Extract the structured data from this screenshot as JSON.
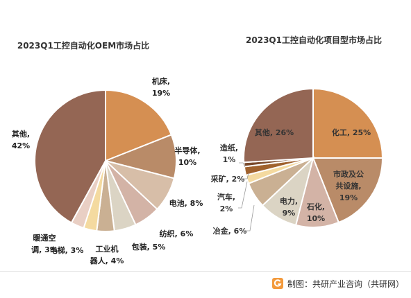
{
  "footer": {
    "source_text": "制图：共研产业咨询（共研网）",
    "logo_icon": "gongyan-logo-icon"
  },
  "chart_data": [
    {
      "type": "pie",
      "title": "2023Q1工控自动化OEM市场占比",
      "slices": [
        {
          "label": "机床",
          "value": 19,
          "display": "19%",
          "color": "#D58F52"
        },
        {
          "label": "半导体",
          "value": 10,
          "display": "10%",
          "color": "#B98B68"
        },
        {
          "label": "电池",
          "value": 8,
          "display": "8%",
          "color": "#D7BEA8"
        },
        {
          "label": "纺织",
          "value": 6,
          "display": "6%",
          "color": "#D3B3A6"
        },
        {
          "label": "包装",
          "value": 5,
          "display": "5%",
          "color": "#DBD4C4"
        },
        {
          "label": "工业机器人",
          "value": 4,
          "display": "4%",
          "color": "#CAB093"
        },
        {
          "label": "电梯",
          "value": 3,
          "display": "3%",
          "color": "#F4DAA0"
        },
        {
          "label": "暖通空调",
          "value": 3,
          "display": "3%",
          "color": "#E9CFC4"
        },
        {
          "label": "其他",
          "value": 42,
          "display": "42%",
          "color": "#946654"
        }
      ]
    },
    {
      "type": "pie",
      "title": "2023Q1工控自动化项目型市场占比",
      "slices": [
        {
          "label": "化工",
          "value": 25,
          "display": "25%",
          "color": "#D58F52"
        },
        {
          "label": "市政及公共设施",
          "value": 19,
          "display": "19%",
          "color": "#B98B68"
        },
        {
          "label": "石化",
          "value": 10,
          "display": "10%",
          "color": "#D3B3A6"
        },
        {
          "label": "电力",
          "value": 9,
          "display": "9%",
          "color": "#DBD4C4"
        },
        {
          "label": "冶金",
          "value": 6,
          "display": "6%",
          "color": "#CAB093"
        },
        {
          "label": "汽车",
          "value": 2,
          "display": "2%",
          "color": "#F4DAA0"
        },
        {
          "label": "采矿",
          "value": 2,
          "display": "2%",
          "color": "#A0622E"
        },
        {
          "label": "造纸",
          "value": 1,
          "display": "1%",
          "color": "#7A4A2C"
        },
        {
          "label": "其他",
          "value": 26,
          "display": "26%",
          "color": "#946654"
        }
      ]
    }
  ]
}
